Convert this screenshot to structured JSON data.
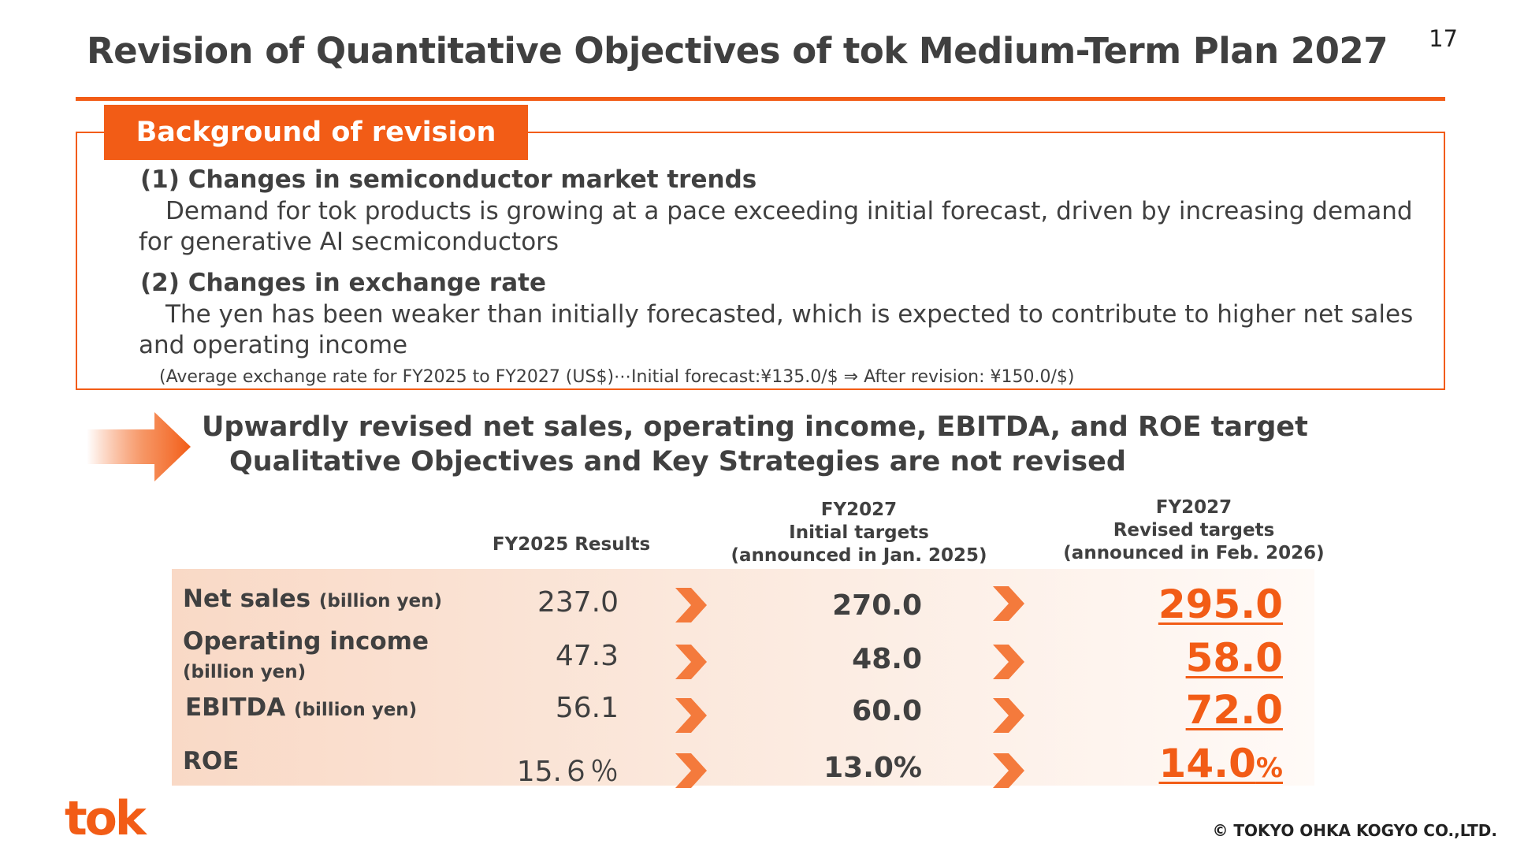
{
  "page": {
    "title": "Revision of Quantitative Objectives of tok Medium-Term Plan 2027",
    "page_number": "17"
  },
  "background": {
    "tag": "Background of revision",
    "item1_heading": "(1) Changes in semiconductor market trends",
    "item1_text": "Demand for tok products is growing at a pace exceeding initial forecast, driven by increasing demand for generative AI secmiconductors",
    "item2_heading": "(2) Changes in exchange rate",
    "item2_text": "The yen has been weaker than initially forecasted, which is expected to contribute to higher net sales and operating income",
    "note": "(Average exchange rate for FY2025 to FY2027 (US$)⋯Initial forecast:¥135.0/$ ⇒ After revision: ¥150.0/$)"
  },
  "summary": {
    "line1": "Upwardly revised net sales, operating income, EBITDA, and ROE target",
    "line2": "Qualitative Objectives and Key Strategies are not revised"
  },
  "table": {
    "col1": "FY2025 Results",
    "col2": [
      "FY2027",
      "Initial targets",
      "(announced in Jan. 2025)"
    ],
    "col3": [
      "FY2027",
      "Revised targets",
      "(announced in Feb. 2026)"
    ],
    "rows": [
      {
        "label": "Net sales",
        "unit": "(billion yen)",
        "fy2025": "237.0",
        "initial": "270.0",
        "revised": "295.0",
        "revised_suffix": ""
      },
      {
        "label": "Operating income",
        "unit": "(billion yen)",
        "fy2025": "47.3",
        "initial": "48.0",
        "revised": "58.0",
        "revised_suffix": ""
      },
      {
        "label": "EBITDA",
        "unit": "(billion yen)",
        "fy2025": "56.1",
        "initial": "60.0",
        "revised": "72.0",
        "revised_suffix": ""
      },
      {
        "label": "ROE",
        "unit": "",
        "fy2025": "15.６％",
        "initial": "13.0%",
        "revised": "14.0",
        "revised_suffix": "%"
      }
    ]
  },
  "footer": {
    "logo_text": "tok",
    "copyright": "© TOKYO OHKA KOGYO CO.,LTD."
  },
  "colors": {
    "accent": "#f25c16",
    "text": "#404040"
  }
}
